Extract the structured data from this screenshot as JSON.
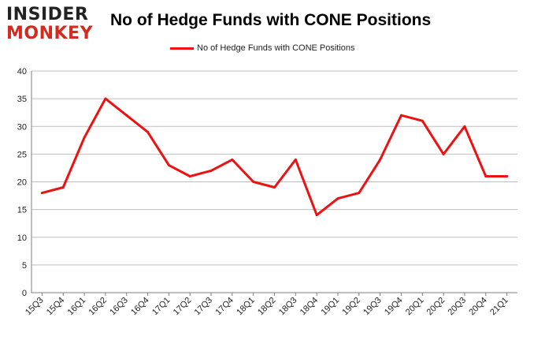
{
  "logo": {
    "line1": "INSIDER",
    "line2": "MONKEY"
  },
  "title": "No of Hedge Funds with CONE Positions",
  "colors": {
    "line": "#ee1111",
    "grid": "#bfbfbf",
    "axis": "#7f7f7f"
  },
  "chart_data": {
    "type": "line",
    "title": "No of Hedge Funds with CONE Positions",
    "xlabel": "",
    "ylabel": "",
    "ylim": [
      0,
      40
    ],
    "yticks": [
      0,
      5,
      10,
      15,
      20,
      25,
      30,
      35,
      40
    ],
    "grid": true,
    "legend_position": "top-center",
    "categories": [
      "15Q3",
      "15Q4",
      "16Q1",
      "16Q2",
      "16Q3",
      "16Q4",
      "17Q1",
      "17Q2",
      "17Q3",
      "17Q4",
      "18Q1",
      "18Q2",
      "18Q3",
      "18Q4",
      "19Q1",
      "19Q2",
      "19Q3",
      "19Q4",
      "20Q1",
      "20Q2",
      "20Q3",
      "20Q4",
      "21Q1"
    ],
    "series": [
      {
        "name": "No of Hedge Funds with CONE Positions",
        "values": [
          18,
          19,
          28,
          35,
          32,
          29,
          23,
          21,
          22,
          24,
          20,
          19,
          24,
          14,
          17,
          18,
          24,
          32,
          31,
          25,
          30,
          21,
          21
        ]
      }
    ]
  }
}
